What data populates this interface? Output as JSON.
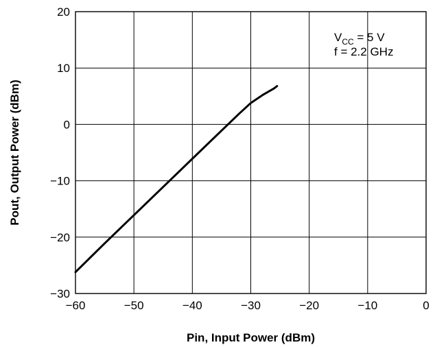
{
  "chart_data": {
    "type": "line",
    "title": "",
    "xlabel": "Pin, Input Power (dBm)",
    "ylabel": "Pout, Output Power (dBm)",
    "xlim": [
      -60,
      0
    ],
    "ylim": [
      -30,
      20
    ],
    "xticks": [
      -60,
      -50,
      -40,
      -30,
      -20,
      -10,
      0
    ],
    "yticks": [
      -30,
      -20,
      -10,
      0,
      10,
      20
    ],
    "xtick_labels": [
      "−60",
      "−50",
      "−40",
      "−30",
      "−20",
      "−10",
      "0"
    ],
    "ytick_labels": [
      "−30",
      "−20",
      "−10",
      "0",
      "10",
      "20"
    ],
    "grid": true,
    "series": [
      {
        "x": [
          -60,
          -55,
          -50,
          -45,
          -40,
          -35,
          -32,
          -30,
          -28,
          -26,
          -25.5
        ],
        "y": [
          -26.2,
          -21.1,
          -16.1,
          -11.1,
          -6.1,
          -1.1,
          1.9,
          3.8,
          5.2,
          6.4,
          6.8
        ]
      }
    ],
    "annotation": {
      "line1_main": "V",
      "line1_sub": "CC",
      "line1_rest": " = 5 V",
      "line2": "f = 2.2 GHz"
    }
  }
}
